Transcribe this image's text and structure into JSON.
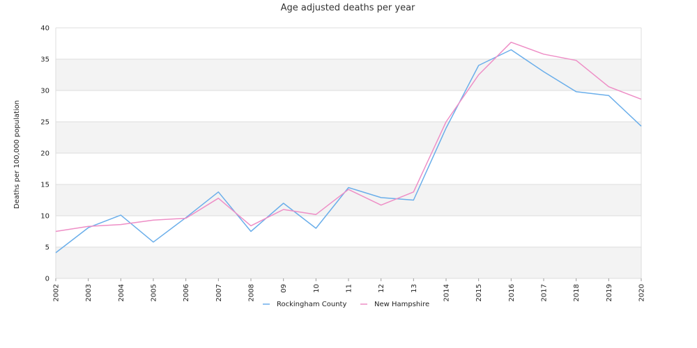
{
  "chart_data": {
    "type": "line",
    "title": "Age adjusted deaths per year",
    "xlabel": "",
    "ylabel": "Deaths per 100,000 population",
    "ylim": [
      0,
      40
    ],
    "yticks": [
      0,
      5,
      10,
      15,
      20,
      25,
      30,
      35,
      40
    ],
    "categories": [
      "2002",
      "2003",
      "2004",
      "2005",
      "2006",
      "2007",
      "2008",
      "09",
      "10",
      "11",
      "12",
      "13",
      "2014",
      "2015",
      "2016",
      "2017",
      "2018",
      "2019",
      "2020"
    ],
    "grid": true,
    "legend_position": "bottom",
    "series": [
      {
        "name": "Rockingham County",
        "color": "#6aaeea",
        "values": [
          4.1,
          8.1,
          10.1,
          5.8,
          9.7,
          13.8,
          7.5,
          12.0,
          8.0,
          14.5,
          12.9,
          12.5,
          24.0,
          34.0,
          36.5,
          33.0,
          29.8,
          29.2,
          24.3
        ]
      },
      {
        "name": "New Hampshire",
        "color": "#ee8ec6",
        "values": [
          7.5,
          8.3,
          8.6,
          9.3,
          9.6,
          12.8,
          8.4,
          11.0,
          10.2,
          14.2,
          11.7,
          13.8,
          25.0,
          32.5,
          37.7,
          35.8,
          34.8,
          30.6,
          28.6
        ]
      }
    ]
  }
}
